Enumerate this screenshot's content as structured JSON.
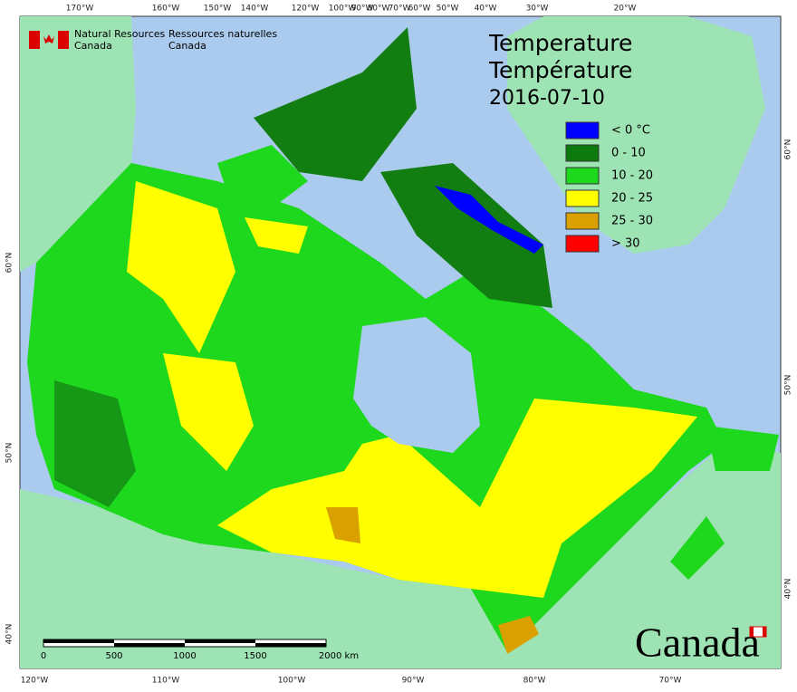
{
  "header": {
    "agency_en": [
      "Natural Resources",
      "Canada"
    ],
    "agency_fr": [
      "Ressources naturelles",
      "Canada"
    ]
  },
  "title": [
    "Temperature",
    "Température",
    "2016-07-10"
  ],
  "legend": [
    {
      "label": "< 0 °C",
      "color": "#0000ff"
    },
    {
      "label": "0 - 10",
      "color": "#0d7a0d"
    },
    {
      "label": "10 - 20",
      "color": "#1ed81e"
    },
    {
      "label": "20 - 25",
      "color": "#ffff00"
    },
    {
      "label": "25 - 30",
      "color": "#d9a000"
    },
    {
      "label": "> 30",
      "color": "#ff0000"
    }
  ],
  "graticule": {
    "top": [
      "170°W",
      "160°W",
      "150°W",
      "140°W",
      "120°W",
      "100°W",
      "90°W",
      "80°W",
      "70°W",
      "60°W",
      "50°W",
      "40°W",
      "30°W",
      "20°W"
    ],
    "bottom": [
      "120°W",
      "110°W",
      "100°W",
      "90°W",
      "80°W",
      "70°W"
    ],
    "left": [
      "60°N",
      "50°N",
      "40°N"
    ],
    "right": [
      "60°N",
      "50°N",
      "40°N"
    ]
  },
  "scale_bar": [
    "0",
    "500",
    "1000",
    "1500",
    "2000 km"
  ],
  "wordmark": "Canada"
}
